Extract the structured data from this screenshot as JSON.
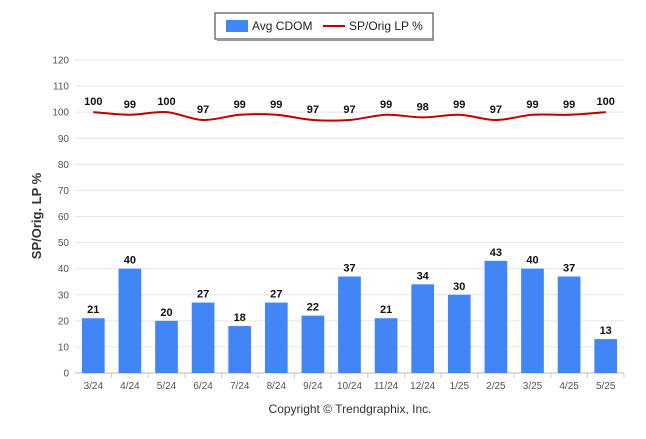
{
  "chart_data": {
    "type": "bar",
    "categories": [
      "3/24",
      "4/24",
      "5/24",
      "6/24",
      "7/24",
      "8/24",
      "9/24",
      "10/24",
      "11/24",
      "12/24",
      "1/25",
      "2/25",
      "3/25",
      "4/25",
      "5/25"
    ],
    "series": [
      {
        "name": "Avg CDOM",
        "type": "bar",
        "color": "#4285f4",
        "values": [
          21,
          40,
          20,
          27,
          18,
          27,
          22,
          37,
          21,
          34,
          30,
          43,
          40,
          37,
          13
        ]
      },
      {
        "name": "SP/Orig LP %",
        "type": "line",
        "color": "#c00000",
        "values": [
          100,
          99,
          100,
          97,
          99,
          99,
          97,
          97,
          99,
          98,
          99,
          97,
          99,
          99,
          100
        ]
      }
    ],
    "ylabel": "SP/Orig. LP %",
    "xlabel": "",
    "ylim": [
      0,
      120
    ],
    "yticks": [
      0,
      10,
      20,
      30,
      40,
      50,
      60,
      70,
      80,
      90,
      100,
      110,
      120
    ],
    "grid": true,
    "legend_position": "top-center"
  },
  "footer": "Copyright © Trendgraphix, Inc."
}
